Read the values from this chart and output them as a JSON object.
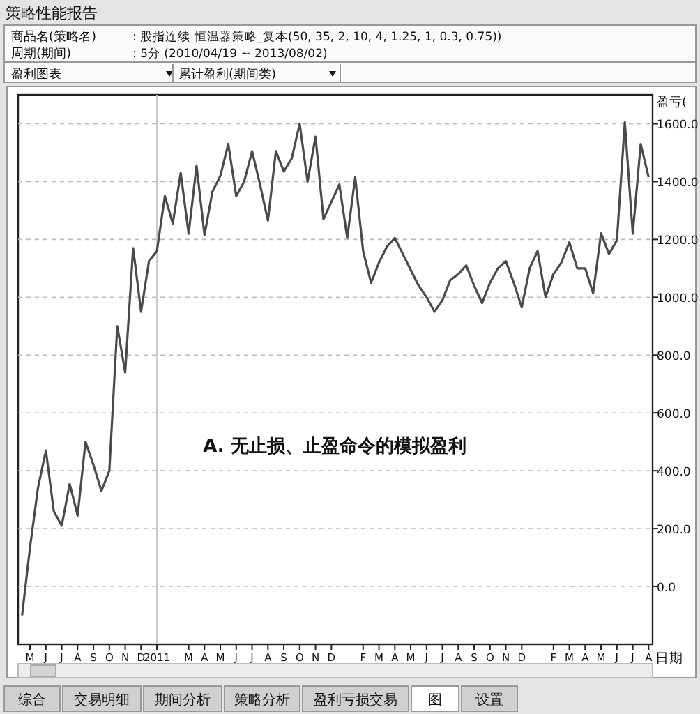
{
  "chart_data": {
    "type": "line",
    "title": "策略性能报告",
    "annotations": [
      "商品名(策略名)",
      ": 股指连续 恒温器策略_复本(50, 35, 2, 10, 4, 1.25, 1, 0.3, 0.75))",
      "周期(期间)",
      ": 5分 (2010/04/19 ~ 2013/08/02)",
      "盈利图表",
      "累计盈利(期间类)",
      "综合",
      "交易明细",
      "期间分析",
      "策略分析",
      "盈利亏损交易",
      "图",
      "设置",
      "A. 无止损、止盈命令的模拟盈利"
    ],
    "xlabel": "日期",
    "ylabel": "盈亏(",
    "categories": [
      null,
      "M",
      null,
      "J",
      null,
      "J",
      null,
      "A",
      null,
      "S",
      null,
      "O",
      null,
      "N",
      null,
      "D",
      null,
      "2011",
      null,
      null,
      null,
      "M",
      null,
      "A",
      null,
      "M",
      null,
      "J",
      null,
      "J",
      null,
      "A",
      null,
      "S",
      null,
      "O",
      null,
      "N",
      null,
      "D",
      null,
      null,
      null,
      "F",
      null,
      "M",
      null,
      "A",
      null,
      "M",
      null,
      "J",
      null,
      "J",
      null,
      "A",
      null,
      "S",
      null,
      "O",
      null,
      "N",
      null,
      "D",
      null,
      null,
      null,
      "F",
      null,
      "M",
      null,
      "A",
      null,
      "M",
      null,
      "J",
      null,
      "J",
      null,
      "A"
    ],
    "series": [
      {
        "color": "#4a4a4a",
        "values": [
          -100,
          135,
          340,
          470,
          260,
          210,
          355,
          245,
          500,
          420,
          330,
          400,
          900,
          740,
          1170,
          950,
          1125,
          1160,
          1350,
          1255,
          1430,
          1220,
          1455,
          1215,
          1365,
          1420,
          1530,
          1350,
          1400,
          1505,
          1390,
          1265,
          1505,
          1435,
          1480,
          1600,
          1400,
          1555,
          1270,
          1330,
          1390,
          1205,
          1415,
          1160,
          1050,
          1120,
          1175,
          1205,
          1150,
          1095,
          1040,
          1000,
          950,
          990,
          1060,
          1080,
          1110,
          1040,
          980,
          1050,
          1100,
          1125,
          1050,
          965,
          1100,
          1160,
          1000,
          1080,
          1120,
          1190,
          1100,
          1100,
          1014,
          1221,
          1150,
          1197,
          1605,
          1220,
          1530,
          1415
        ]
      }
    ],
    "ylim": [
      -200,
      1700
    ],
    "yticks": [
      {
        "value": 0,
        "label": "0.0"
      },
      {
        "value": 200,
        "label": "200.0"
      },
      {
        "value": 400,
        "label": "400.0"
      },
      {
        "value": 600,
        "label": "600.0"
      },
      {
        "value": 800,
        "label": "800.0"
      },
      {
        "value": 1000,
        "label": "1000.0"
      },
      {
        "value": 1200,
        "label": "1200.0"
      },
      {
        "value": 1400,
        "label": "1400.0"
      },
      {
        "value": 1600,
        "label": "1600.0"
      }
    ],
    "grid": "y",
    "ref_lines": [
      {
        "axis": "x",
        "value": "2011",
        "color": "#c8c8c8"
      }
    ]
  }
}
